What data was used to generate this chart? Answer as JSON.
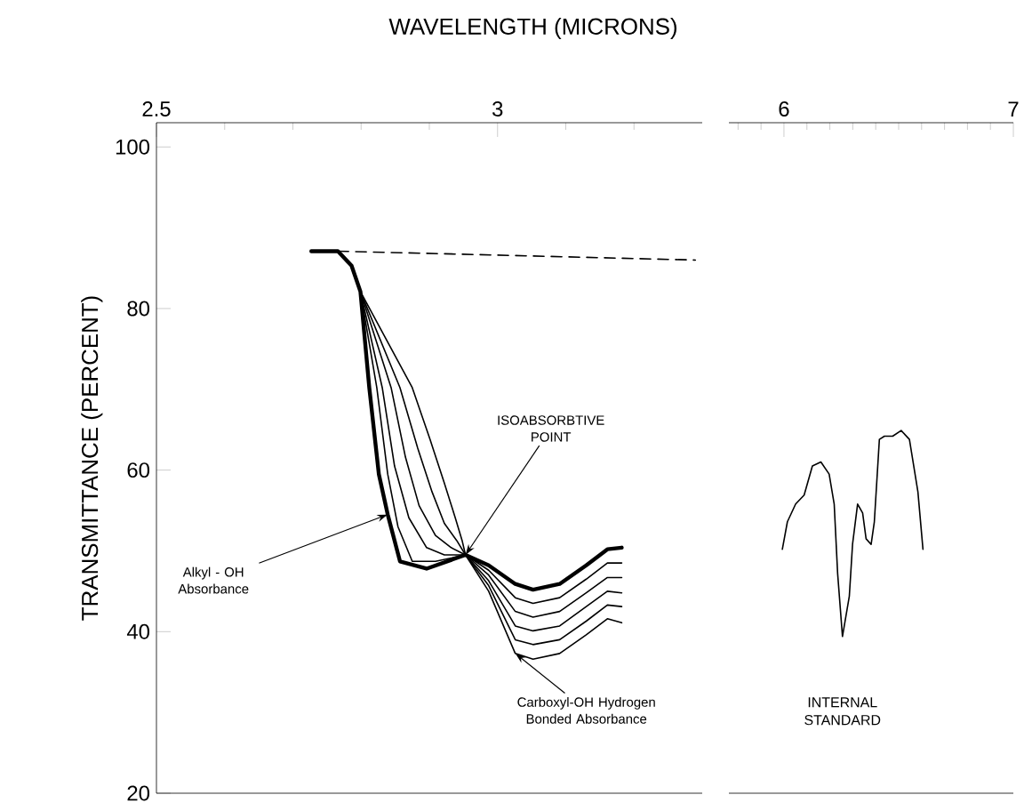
{
  "chart_data": [
    {
      "type": "line",
      "xlabel": "WAVELENGTH (MICRONS)",
      "ylabel": "TRANSMITTANCE (PERCENT)",
      "xlim": [
        2.5,
        3.3
      ],
      "ylim": [
        20,
        103
      ],
      "xticks": [
        2.5,
        3,
        {
          "value": 2.6,
          "label": null
        },
        {
          "value": 2.7,
          "label": null
        },
        {
          "value": 2.8,
          "label": null
        },
        {
          "value": 2.9,
          "label": null
        },
        {
          "value": 3.1,
          "label": null
        },
        {
          "value": 3.2,
          "label": null
        }
      ],
      "yticks": [
        20,
        40,
        60,
        80,
        100
      ],
      "series": [
        {
          "color": "#000000",
          "x": [
            2.727,
            2.766,
            2.786,
            2.799,
            2.812,
            2.826,
            2.839,
            2.857,
            2.896,
            2.953,
            2.987,
            3.026,
            3.052,
            3.091,
            3.13,
            3.161,
            3.182
          ],
          "values": [
            87.1,
            87.1,
            85.3,
            82.1,
            70.2,
            59.5,
            54.5,
            48.7,
            47.8,
            49.5,
            48.2,
            45.9,
            45.2,
            45.9,
            48.2,
            50.2,
            50.4
          ]
        },
        {
          "color": "#000000",
          "x": [
            2.727,
            2.766,
            2.786,
            2.799,
            2.823,
            2.839,
            2.854,
            2.875,
            2.909,
            2.953,
            2.987,
            3.026,
            3.052,
            3.091,
            3.13,
            3.161,
            3.182
          ],
          "values": [
            87.1,
            87.1,
            85.3,
            82.1,
            70.2,
            59.5,
            53.0,
            48.7,
            48.7,
            49.5,
            47.6,
            44.2,
            43.5,
            44.2,
            46.5,
            48.5,
            48.5
          ]
        },
        {
          "color": "#000000",
          "x": [
            2.727,
            2.766,
            2.786,
            2.799,
            2.831,
            2.849,
            2.87,
            2.896,
            2.922,
            2.953,
            2.987,
            3.026,
            3.052,
            3.091,
            3.13,
            3.161,
            3.182
          ],
          "values": [
            87.1,
            87.1,
            85.3,
            82.1,
            70.2,
            60.5,
            54.1,
            50.4,
            49.5,
            49.5,
            47.0,
            42.5,
            41.8,
            42.5,
            44.8,
            46.7,
            46.7
          ]
        },
        {
          "color": "#000000",
          "x": [
            2.727,
            2.766,
            2.786,
            2.799,
            2.844,
            2.865,
            2.885,
            2.909,
            2.932,
            2.953,
            2.987,
            3.026,
            3.052,
            3.091,
            3.13,
            3.161,
            3.182
          ],
          "values": [
            87.1,
            87.1,
            85.3,
            82.1,
            70.2,
            61.6,
            55.6,
            51.9,
            50.4,
            49.5,
            46.3,
            40.7,
            40.1,
            40.7,
            43.1,
            45.0,
            44.8
          ]
        },
        {
          "color": "#000000",
          "x": [
            2.727,
            2.766,
            2.786,
            2.799,
            2.857,
            2.883,
            2.904,
            2.922,
            2.94,
            2.953,
            2.987,
            3.026,
            3.052,
            3.091,
            3.13,
            3.161,
            3.182
          ],
          "values": [
            87.1,
            87.1,
            85.3,
            82.1,
            70.2,
            62.7,
            57.3,
            53.4,
            51.3,
            49.5,
            45.7,
            39.0,
            38.4,
            39.0,
            41.3,
            43.3,
            43.1
          ]
        },
        {
          "color": "#000000",
          "x": [
            2.727,
            2.766,
            2.786,
            2.799,
            2.875,
            2.901,
            2.922,
            2.938,
            2.948,
            2.953,
            2.987,
            3.026,
            3.052,
            3.091,
            3.13,
            3.161,
            3.182
          ],
          "values": [
            87.1,
            87.1,
            85.3,
            82.1,
            70.2,
            63.8,
            58.4,
            54.1,
            51.3,
            49.5,
            45.0,
            37.3,
            36.6,
            37.3,
            39.6,
            41.6,
            41.1
          ]
        },
        {
          "color": "#000000",
          "line_style": "dashed",
          "x": [
            2.766,
            3.29
          ],
          "values": [
            87.1,
            86.0
          ]
        }
      ],
      "annotations": [
        {
          "text": "ISOABSORBTIVE POINT",
          "x": 2.953,
          "y": 49.5
        },
        {
          "text": "Alkyl - OH Absorbance",
          "x": 2.839,
          "y": 54.5
        },
        {
          "text": "Carboxyl-OH Hydrogen Bonded Absorbance",
          "x": 3.026,
          "y": 37.3
        }
      ]
    },
    {
      "type": "line",
      "xlim": [
        5.76,
        7.0
      ],
      "ylim": [
        20,
        103
      ],
      "tick_labels": "x",
      "xticks": [
        6,
        7,
        {
          "value": 5.8,
          "label": null
        },
        {
          "value": 5.9,
          "label": null
        },
        {
          "value": 6.1,
          "label": null
        },
        {
          "value": 6.2,
          "label": null
        },
        {
          "value": 6.3,
          "label": null
        },
        {
          "value": 6.4,
          "label": null
        },
        {
          "value": 6.5,
          "label": null
        },
        {
          "value": 6.6,
          "label": null
        },
        {
          "value": 6.7,
          "label": null
        },
        {
          "value": 6.8,
          "label": null
        },
        {
          "value": 6.9,
          "label": null
        }
      ],
      "series": [
        {
          "name": "INTERNAL STANDARD",
          "color": "#000000",
          "x": [
            5.993,
            6.015,
            6.051,
            6.088,
            6.124,
            6.161,
            6.197,
            6.219,
            6.234,
            6.255,
            6.285,
            6.299,
            6.321,
            6.343,
            6.358,
            6.38,
            6.394,
            6.416,
            6.438,
            6.474,
            6.511,
            6.547,
            6.584,
            6.606
          ],
          "values": [
            50.2,
            53.6,
            55.8,
            56.9,
            60.5,
            61.0,
            59.5,
            55.8,
            47.2,
            39.4,
            44.4,
            50.8,
            55.8,
            54.7,
            51.5,
            50.8,
            53.6,
            63.8,
            64.2,
            64.2,
            64.9,
            63.8,
            57.3,
            50.2
          ]
        }
      ]
    }
  ]
}
